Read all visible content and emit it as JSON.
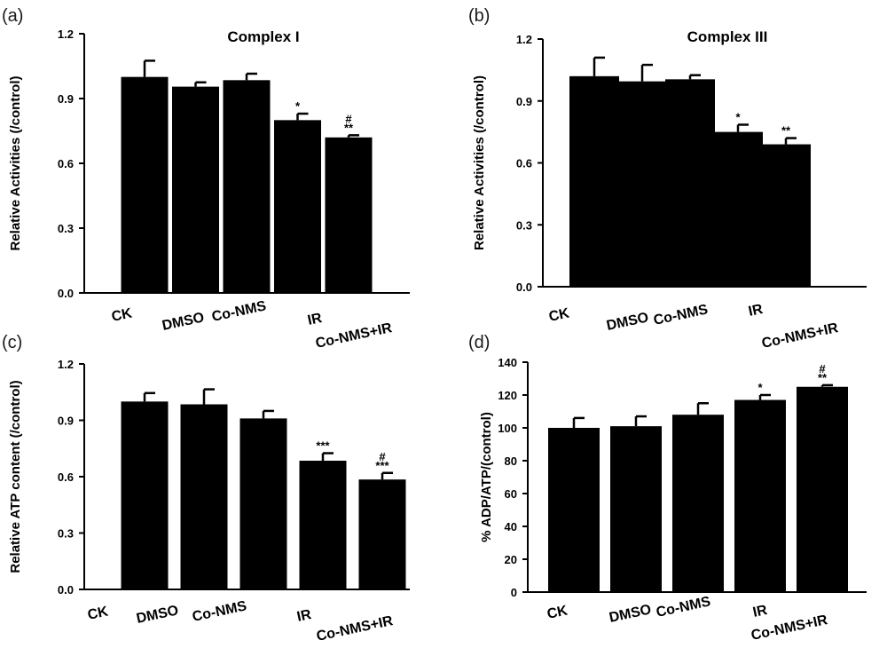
{
  "chart_data": [
    {
      "panel_label": "(a)",
      "type": "bar",
      "title": "Complex I",
      "ylabel": "Relative Activities (/control)",
      "xlabel": "",
      "categories": [
        "CK",
        "DMSO",
        "Co-NMS",
        "IR",
        "Co-NMS+IR"
      ],
      "values": [
        1.0,
        0.955,
        0.985,
        0.8,
        0.72
      ],
      "errors": [
        0.075,
        0.02,
        0.03,
        0.03,
        0.01
      ],
      "significance": [
        "",
        "",
        "",
        "*",
        "#\n**"
      ],
      "ylim": [
        0,
        1.2
      ],
      "yticks": [
        0.0,
        0.3,
        0.6,
        0.9,
        1.2
      ],
      "ytick_labels": [
        "0.0",
        "0.3",
        "0.6",
        "0.9",
        "1.2"
      ],
      "bar_color": "#000000"
    },
    {
      "panel_label": "(b)",
      "type": "bar",
      "title": "Complex III",
      "ylabel": "Relative Activities (/control)",
      "xlabel": "",
      "categories": [
        "CK",
        "DMSO",
        "Co-NMS",
        "IR",
        "Co-NMS+IR"
      ],
      "values": [
        1.02,
        0.995,
        1.005,
        0.75,
        0.69
      ],
      "errors": [
        0.09,
        0.08,
        0.02,
        0.035,
        0.03
      ],
      "significance": [
        "",
        "",
        "",
        "*",
        "**"
      ],
      "ylim": [
        0,
        1.2
      ],
      "yticks": [
        0.0,
        0.3,
        0.6,
        0.9,
        1.2
      ],
      "ytick_labels": [
        "0.0",
        "0.3",
        "0.6",
        "0.9",
        "1.2"
      ],
      "bar_color": "#000000"
    },
    {
      "panel_label": "(c)",
      "type": "bar",
      "title": "",
      "ylabel": "Relative ATP content (/control)",
      "xlabel": "",
      "categories": [
        "CK",
        "DMSO",
        "Co-NMS",
        "IR",
        "Co-NMS+IR"
      ],
      "values": [
        1.0,
        0.985,
        0.91,
        0.685,
        0.585
      ],
      "errors": [
        0.045,
        0.08,
        0.04,
        0.04,
        0.035
      ],
      "significance": [
        "",
        "",
        "",
        "***",
        "#\n***"
      ],
      "ylim": [
        0,
        1.2
      ],
      "yticks": [
        0.0,
        0.3,
        0.6,
        0.9,
        1.2
      ],
      "ytick_labels": [
        "0.0",
        "0.3",
        "0.6",
        "0.9",
        "1.2"
      ],
      "bar_color": "#000000"
    },
    {
      "panel_label": "(d)",
      "type": "bar",
      "title": "",
      "ylabel": "% ADP/ATP/(control)",
      "xlabel": "",
      "categories": [
        "CK",
        "DMSO",
        "Co-NMS",
        "IR",
        "Co-NMS+IR"
      ],
      "values": [
        100,
        101,
        108,
        117,
        125
      ],
      "errors": [
        6,
        6,
        7,
        3,
        1
      ],
      "significance": [
        "",
        "",
        "",
        "*",
        "#\n**"
      ],
      "ylim": [
        0,
        140
      ],
      "yticks": [
        0,
        20,
        40,
        60,
        80,
        100,
        120,
        140
      ],
      "ytick_labels": [
        "0",
        "20",
        "40",
        "60",
        "80",
        "100",
        "120",
        "140"
      ],
      "bar_color": "#000000"
    }
  ]
}
